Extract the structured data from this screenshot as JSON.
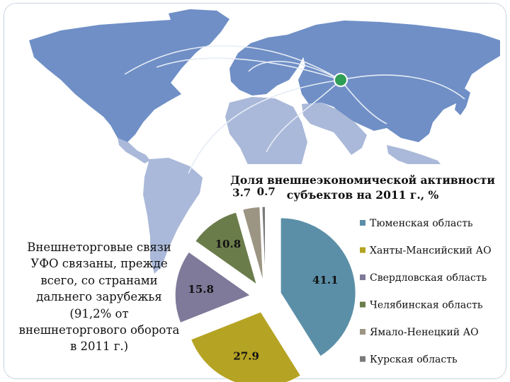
{
  "colors": {
    "land": "#6f8fc6",
    "land_light": "#aab9d9",
    "ocean": "#ffffff",
    "route": "#e6ecf5",
    "marker": "#2f9e56"
  },
  "side_text": "Внешнеторговые связи УФО связаны, прежде всего, со странами дальнего зарубежья (91,2% от внешнеторгового оборота в 2011 г.)",
  "chart_data": {
    "type": "pie",
    "title": "Доля внешнеэкономической активности субъектов на 2011 г., %",
    "title_lines": [
      "Доля внешнеэкономической активности",
      "субъектов на 2011 г., %"
    ],
    "categories": [
      "Тюменская область",
      "Ханты-Мансийский АО",
      "Свердловская область",
      "Челябинская область",
      "Ямало-Ненецкий АО",
      "Курская область"
    ],
    "values": [
      41.1,
      27.9,
      15.8,
      10.8,
      3.7,
      0.7
    ],
    "value_labels": [
      "41.1",
      "27.9",
      "15.8",
      "10.8",
      "3.7",
      "0.7"
    ],
    "colors": [
      "#5b8fa8",
      "#b5a323",
      "#7f7a9a",
      "#6b7c4b",
      "#9c9583",
      "#7a7a7a"
    ],
    "exploded": true,
    "legend_position": "right"
  }
}
